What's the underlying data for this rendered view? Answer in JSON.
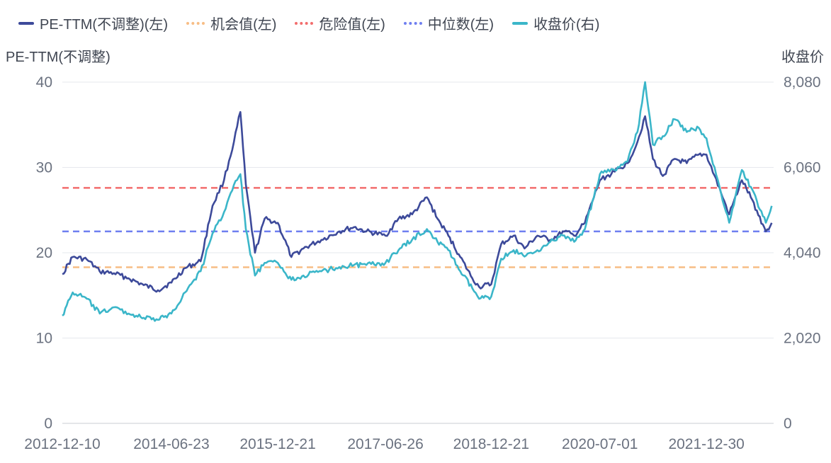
{
  "legend": [
    {
      "label": "PE-TTM(不调整)(左)",
      "color": "#3d4a9a",
      "style": "solid"
    },
    {
      "label": "机会值(左)",
      "color": "#f7bd85",
      "style": "dashed"
    },
    {
      "label": "危险值(左)",
      "color": "#f26d6d",
      "style": "dashed"
    },
    {
      "label": "中位数(左)",
      "color": "#6f7ff0",
      "style": "dashed"
    },
    {
      "label": "收盘价(右)",
      "color": "#3bb6c9",
      "style": "solid"
    }
  ],
  "chart_data": {
    "type": "line",
    "y_left_label": "PE-TTM(不调整)",
    "y_right_label": "收盘价",
    "y_left_ticks": [
      "0",
      "10",
      "20",
      "30",
      "40"
    ],
    "y_right_ticks": [
      "0",
      "2,020",
      "4,040",
      "6,060",
      "8,080"
    ],
    "x_ticks": [
      "2012-12-10",
      "2014-06-23",
      "2015-12-21",
      "2017-06-26",
      "2018-12-21",
      "2020-07-01",
      "2021-12-30"
    ],
    "y_left_range": [
      0,
      40
    ],
    "y_right_range": [
      0,
      8080
    ],
    "grid": "horizontal",
    "reference_lines": [
      {
        "name": "机会值(左)",
        "value": 18.3,
        "color": "#f7bd85"
      },
      {
        "name": "危险值(左)",
        "value": 27.6,
        "color": "#f26d6d"
      },
      {
        "name": "中位数(左)",
        "value": 22.5,
        "color": "#6f7ff0"
      }
    ],
    "series": [
      {
        "name": "PE-TTM(不调整)(左)",
        "axis": "left",
        "color": "#3d4a9a",
        "x": [
          "2012-12-10",
          "2013-02-01",
          "2013-04-15",
          "2013-06-20",
          "2013-09-01",
          "2013-11-15",
          "2014-02-01",
          "2014-04-15",
          "2014-06-23",
          "2014-09-01",
          "2014-11-20",
          "2015-01-20",
          "2015-03-20",
          "2015-05-10",
          "2015-06-12",
          "2015-07-10",
          "2015-08-26",
          "2015-10-15",
          "2015-12-21",
          "2016-02-29",
          "2016-05-01",
          "2016-08-01",
          "2016-11-01",
          "2017-01-15",
          "2017-03-20",
          "2017-06-26",
          "2017-09-01",
          "2017-11-10",
          "2018-01-25",
          "2018-03-20",
          "2018-05-15",
          "2018-07-15",
          "2018-09-15",
          "2018-10-20",
          "2018-12-21",
          "2019-02-10",
          "2019-04-15",
          "2019-06-10",
          "2019-08-15",
          "2019-10-20",
          "2019-12-31",
          "2020-02-20",
          "2020-04-15",
          "2020-07-01",
          "2020-09-15",
          "2020-11-20",
          "2021-01-10",
          "2021-02-18",
          "2021-03-30",
          "2021-05-20",
          "2021-07-20",
          "2021-09-20",
          "2021-11-20",
          "2021-12-30",
          "2022-03-15",
          "2022-04-26",
          "2022-06-30",
          "2022-08-15",
          "2022-10-31",
          "2022-11-30"
        ],
        "values": [
          17.5,
          19.5,
          19.2,
          17.8,
          17.6,
          17.0,
          16.2,
          15.6,
          16.5,
          18.2,
          19.0,
          25.5,
          28.5,
          33.0,
          36.5,
          28.0,
          20.0,
          24.0,
          23.5,
          19.5,
          20.5,
          21.5,
          22.5,
          23.0,
          22.5,
          22.0,
          24.0,
          24.5,
          26.5,
          24.0,
          22.0,
          19.5,
          17.0,
          16.0,
          16.3,
          21.0,
          22.0,
          20.5,
          22.0,
          21.5,
          22.5,
          22.0,
          23.5,
          28.5,
          29.5,
          30.5,
          33.0,
          36.0,
          31.0,
          29.0,
          31.0,
          30.5,
          31.5,
          31.5,
          27.0,
          24.5,
          28.5,
          26.5,
          22.5,
          23.5
        ]
      },
      {
        "name": "收盘价(右)",
        "axis": "right",
        "color": "#3bb6c9",
        "x": [
          "2012-12-10",
          "2013-02-01",
          "2013-04-15",
          "2013-06-20",
          "2013-09-01",
          "2013-11-15",
          "2014-02-01",
          "2014-04-15",
          "2014-06-23",
          "2014-09-01",
          "2014-11-20",
          "2015-01-20",
          "2015-03-20",
          "2015-05-10",
          "2015-06-12",
          "2015-07-10",
          "2015-08-26",
          "2015-10-15",
          "2015-12-21",
          "2016-02-29",
          "2016-05-01",
          "2016-08-01",
          "2016-11-01",
          "2017-01-15",
          "2017-03-20",
          "2017-06-26",
          "2017-09-01",
          "2017-11-10",
          "2018-01-25",
          "2018-03-20",
          "2018-05-15",
          "2018-07-15",
          "2018-09-15",
          "2018-10-20",
          "2018-12-21",
          "2019-02-10",
          "2019-04-15",
          "2019-06-10",
          "2019-08-15",
          "2019-10-20",
          "2019-12-31",
          "2020-02-20",
          "2020-04-15",
          "2020-07-01",
          "2020-09-15",
          "2020-11-20",
          "2021-01-10",
          "2021-02-18",
          "2021-03-30",
          "2021-05-20",
          "2021-07-20",
          "2021-09-20",
          "2021-11-20",
          "2021-12-30",
          "2022-03-15",
          "2022-04-26",
          "2022-06-30",
          "2022-08-15",
          "2022-10-31",
          "2022-11-30"
        ],
        "values": [
          2550,
          3100,
          2950,
          2600,
          2750,
          2600,
          2500,
          2450,
          2600,
          3100,
          3600,
          4500,
          5000,
          5650,
          5900,
          4600,
          3500,
          3800,
          3800,
          3400,
          3500,
          3600,
          3700,
          3750,
          3750,
          3800,
          4100,
          4350,
          4600,
          4300,
          4100,
          3600,
          3200,
          2950,
          3000,
          3900,
          4100,
          3950,
          4100,
          4300,
          4450,
          4300,
          4600,
          5900,
          6000,
          6200,
          6900,
          8080,
          6600,
          6800,
          7200,
          6900,
          7000,
          6750,
          5450,
          4750,
          6000,
          5600,
          4750,
          5150
        ]
      }
    ]
  }
}
